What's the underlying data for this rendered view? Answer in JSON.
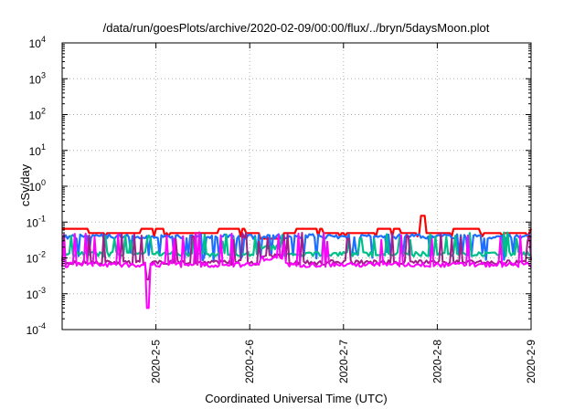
{
  "chart_data": {
    "type": "line",
    "title": "/data/run/goesPlots/archive/2020-02-09/00:00/flux/../bryn/5daysMoon.plot",
    "xlabel": "Coordinated Universal Time (UTC)",
    "ylabel": "cSv/day",
    "yscale": "log",
    "ylim_exp": [
      -4,
      4
    ],
    "y_tick_exponents": [
      -4,
      -3,
      -2,
      -1,
      0,
      1,
      2,
      3,
      4
    ],
    "y_tick_base": "10",
    "x_start": "2020-02-04T00:00",
    "x_end": "2020-02-09T00:00",
    "x_ticks": [
      {
        "date": "2020-02-05T00:00",
        "label": "2020-2-5"
      },
      {
        "date": "2020-02-06T00:00",
        "label": "2020-2-6"
      },
      {
        "date": "2020-02-07T00:00",
        "label": "2020-2-7"
      },
      {
        "date": "2020-02-08T00:00",
        "label": "2020-2-8"
      },
      {
        "date": "2020-02-09T00:00",
        "label": "2020-2-9"
      }
    ],
    "grid": true,
    "series_colors": [
      "#ff0000",
      "#1e6fff",
      "#00c08a",
      "#a0208a",
      "#ff00ff"
    ],
    "series": [
      {
        "color": "#ff0000",
        "baseline": 0.052,
        "pattern": "stepped",
        "x_start": "2020-02-04T00:00",
        "x_end": "2020-02-09T00:00",
        "spike_values": [
          0.04,
          0.06,
          0.15,
          0.05
        ]
      },
      {
        "color": "#1e6fff",
        "baseline": 0.04,
        "pattern": "spiky",
        "x_start": "2020-02-04T00:00",
        "x_end": "2020-02-09T00:00",
        "spike_values": [
          0.012,
          0.02,
          0.1
        ]
      },
      {
        "color": "#00c08a",
        "baseline": 0.013,
        "pattern": "spiky",
        "x_start": "2020-02-04T00:00",
        "x_end": "2020-02-09T00:00",
        "spike_values": [
          0.04,
          0.02
        ]
      },
      {
        "color": "#a0208a",
        "baseline": 0.0075,
        "pattern": "spiky",
        "x_start": "2020-02-04T00:00",
        "x_end": "2020-02-09T00:00",
        "spike_values": [
          0.04,
          0.03
        ]
      },
      {
        "color": "#ff00ff",
        "baseline": 0.0065,
        "pattern": "spiky",
        "x_start": "2020-02-04T00:00",
        "x_end": "2020-02-09T00:00",
        "spike_values": [
          0.04,
          0.0004
        ]
      }
    ]
  }
}
